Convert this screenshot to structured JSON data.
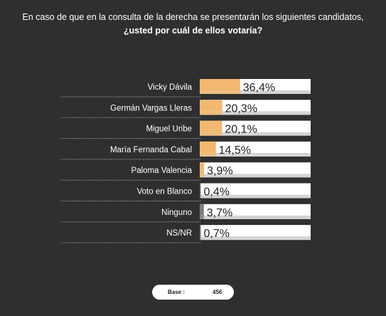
{
  "title": {
    "line1": "En caso de que en la consulta de la derecha se presentarán los siguientes candidatos,",
    "line2": "¿usted por cuál de ellos votaría?"
  },
  "chart_data": {
    "type": "bar",
    "orientation": "horizontal",
    "categories": [
      "Vicky Dávila",
      "Germán Vargas Lleras",
      "Miguel Uribe",
      "María Fernanda Cabal",
      "Paloma Valencia",
      "Voto en Blanco",
      "Ninguno",
      "NS/NR"
    ],
    "values": [
      36.4,
      20.3,
      20.1,
      14.5,
      3.9,
      0.4,
      3.7,
      0.7
    ],
    "value_labels": [
      "36,4%",
      "20,3%",
      "20,1%",
      "14,5%",
      "3,9%",
      "0,4%",
      "3,7%",
      "0,7%"
    ],
    "bar_kinds": [
      "candidate",
      "candidate",
      "candidate",
      "candidate",
      "candidate",
      "other",
      "other",
      "other"
    ],
    "xlim": [
      0,
      100
    ],
    "colors": {
      "candidate_fill": "#f2b870",
      "other_fill": "#7a7a7a",
      "track": "#ffffff",
      "track_shadow": "#d4d4d4",
      "separator": "#bdbdbd",
      "label": "#ffffff",
      "value_text": "#222222"
    }
  },
  "base": {
    "label": "Base :",
    "value": "456"
  }
}
